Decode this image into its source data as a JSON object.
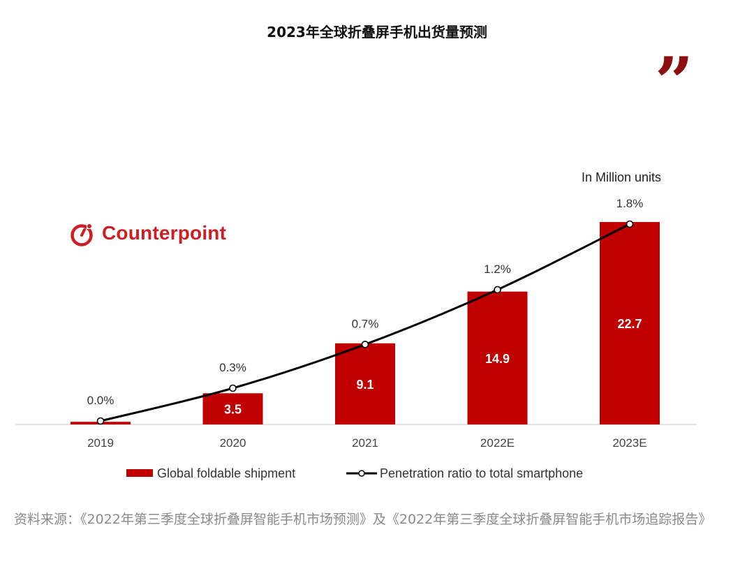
{
  "page": {
    "title": "2023年全球折叠屏手机出货量预测",
    "source": "资料来源：《2022年第三季度全球折叠屏智能手机市场预测》及《2022年第三季度全球折叠屏智能手机市场追踪报告》"
  },
  "brand": {
    "name": "Counterpoint",
    "color": "#cc1f24",
    "quote_color": "#8b0f0f",
    "quote_glyph": "”"
  },
  "chart_data": {
    "type": "bar",
    "title": "2023年全球折叠屏手机出货量预测",
    "unit_label": "In Million units",
    "categories": [
      "2019",
      "2020",
      "2021",
      "2022E",
      "2023E"
    ],
    "series": [
      {
        "name": "Global foldable shipment",
        "type": "bar",
        "color": "#c00000",
        "values": [
          0.3,
          3.5,
          9.1,
          14.9,
          22.7
        ],
        "labels": [
          "",
          "3.5",
          "9.1",
          "14.9",
          "22.7"
        ]
      },
      {
        "name": "Penetration ratio to total smartphone",
        "type": "line",
        "color": "#000000",
        "values": [
          0.0,
          0.3,
          0.7,
          1.2,
          1.8
        ],
        "labels": [
          "0.0%",
          "0.3%",
          "0.7%",
          "1.2%",
          "1.8%"
        ]
      }
    ],
    "ylim_bars": [
      0,
      22.7
    ],
    "ylim_line": [
      0,
      1.8
    ],
    "grid": false,
    "legend_position": "bottom"
  }
}
